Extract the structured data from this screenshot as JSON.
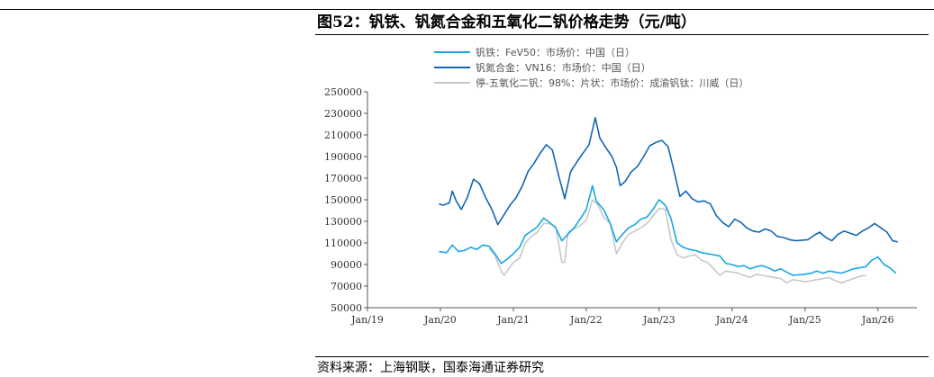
{
  "title": "图52：钒铁、钒氮合金和五氧化二钒价格走势（元/吨）",
  "source": "资料来源：上海钢联，国泰海通证券研究",
  "chart_data": {
    "type": "line",
    "ylim": [
      50000,
      250000
    ],
    "yticks": [
      "250000",
      "230000",
      "210000",
      "190000",
      "170000",
      "150000",
      "130000",
      "110000",
      "90000",
      "70000",
      "50000"
    ],
    "xticks": [
      "Jan/19",
      "Jan/20",
      "Jan/21",
      "Jan/22",
      "Jan/23",
      "Jan/24",
      "Jan/25",
      "Jan/26"
    ],
    "legend_position": "top",
    "series": [
      {
        "name": "钒铁：FeV50：市场价：中国（日）",
        "color": "#1aa7e0",
        "points": [
          [
            "2019-12-25",
            102000
          ],
          [
            "2020-02-01",
            101000
          ],
          [
            "2020-03-01",
            108000
          ],
          [
            "2020-04-01",
            102000
          ],
          [
            "2020-05-01",
            103000
          ],
          [
            "2020-06-01",
            106000
          ],
          [
            "2020-07-01",
            104000
          ],
          [
            "2020-08-01",
            108000
          ],
          [
            "2020-09-01",
            107000
          ],
          [
            "2020-10-01",
            100000
          ],
          [
            "2020-11-01",
            91000
          ],
          [
            "2020-12-01",
            95000
          ],
          [
            "2021-01-01",
            100000
          ],
          [
            "2021-02-01",
            106000
          ],
          [
            "2021-03-01",
            117000
          ],
          [
            "2021-04-01",
            121000
          ],
          [
            "2021-05-01",
            125000
          ],
          [
            "2021-06-01",
            133000
          ],
          [
            "2021-07-01",
            129000
          ],
          [
            "2021-08-01",
            124000
          ],
          [
            "2021-09-01",
            112000
          ],
          [
            "2021-10-01",
            118000
          ],
          [
            "2021-11-01",
            124000
          ],
          [
            "2021-12-01",
            132000
          ],
          [
            "2022-01-01",
            141000
          ],
          [
            "2022-02-01",
            163000
          ],
          [
            "2022-02-20",
            149000
          ],
          [
            "2022-03-10",
            145000
          ],
          [
            "2022-04-01",
            140000
          ],
          [
            "2022-05-01",
            128000
          ],
          [
            "2022-06-01",
            111000
          ],
          [
            "2022-07-01",
            118000
          ],
          [
            "2022-08-01",
            124000
          ],
          [
            "2022-09-01",
            127000
          ],
          [
            "2022-10-01",
            132000
          ],
          [
            "2022-11-01",
            134000
          ],
          [
            "2022-12-01",
            141000
          ],
          [
            "2023-01-01",
            150000
          ],
          [
            "2023-02-01",
            145000
          ],
          [
            "2023-03-01",
            133000
          ],
          [
            "2023-04-01",
            110000
          ],
          [
            "2023-05-01",
            106000
          ],
          [
            "2023-06-01",
            104000
          ],
          [
            "2023-07-01",
            103000
          ],
          [
            "2023-08-01",
            101000
          ],
          [
            "2023-09-01",
            100000
          ],
          [
            "2023-10-01",
            99000
          ],
          [
            "2023-11-01",
            98000
          ],
          [
            "2023-12-01",
            91000
          ],
          [
            "2024-01-01",
            90000
          ],
          [
            "2024-02-01",
            88000
          ],
          [
            "2024-03-01",
            89000
          ],
          [
            "2024-04-01",
            86000
          ],
          [
            "2024-05-01",
            88000
          ],
          [
            "2024-06-01",
            89000
          ],
          [
            "2024-07-01",
            87000
          ],
          [
            "2024-08-01",
            84000
          ],
          [
            "2024-09-01",
            86000
          ],
          [
            "2024-10-01",
            83000
          ],
          [
            "2024-11-01",
            80000
          ],
          [
            "2025-01-01",
            81000
          ],
          [
            "2025-02-01",
            82000
          ],
          [
            "2025-03-01",
            84000
          ],
          [
            "2025-04-01",
            82000
          ],
          [
            "2025-05-01",
            84000
          ],
          [
            "2025-06-01",
            83000
          ],
          [
            "2025-07-01",
            82000
          ],
          [
            "2025-08-01",
            84000
          ],
          [
            "2025-09-01",
            86000
          ],
          [
            "2025-10-01",
            87000
          ],
          [
            "2025-11-01",
            88000
          ],
          [
            "2025-12-01",
            94000
          ],
          [
            "2026-01-01",
            97000
          ],
          [
            "2026-02-01",
            90000
          ],
          [
            "2026-03-01",
            87000
          ],
          [
            "2026-04-01",
            82000
          ]
        ]
      },
      {
        "name": "钒氮合金：VN16：市场价：中国（日）",
        "color": "#1267b2",
        "points": [
          [
            "2019-12-25",
            146000
          ],
          [
            "2020-01-15",
            145000
          ],
          [
            "2020-02-15",
            147000
          ],
          [
            "2020-03-01",
            158000
          ],
          [
            "2020-03-20",
            149000
          ],
          [
            "2020-04-15",
            141000
          ],
          [
            "2020-05-15",
            152000
          ],
          [
            "2020-06-15",
            169000
          ],
          [
            "2020-07-15",
            165000
          ],
          [
            "2020-08-15",
            152000
          ],
          [
            "2020-09-15",
            141000
          ],
          [
            "2020-10-15",
            127000
          ],
          [
            "2020-11-15",
            136000
          ],
          [
            "2020-12-15",
            145000
          ],
          [
            "2021-01-15",
            152000
          ],
          [
            "2021-02-15",
            163000
          ],
          [
            "2021-03-15",
            176000
          ],
          [
            "2021-04-15",
            184000
          ],
          [
            "2021-05-15",
            193000
          ],
          [
            "2021-06-15",
            201000
          ],
          [
            "2021-07-15",
            196000
          ],
          [
            "2021-08-15",
            173000
          ],
          [
            "2021-09-15",
            151000
          ],
          [
            "2021-10-15",
            176000
          ],
          [
            "2021-11-15",
            185000
          ],
          [
            "2021-12-15",
            193000
          ],
          [
            "2022-01-15",
            201000
          ],
          [
            "2022-02-15",
            226000
          ],
          [
            "2022-03-10",
            207000
          ],
          [
            "2022-04-10",
            198000
          ],
          [
            "2022-05-10",
            190000
          ],
          [
            "2022-06-01",
            180000
          ],
          [
            "2022-06-20",
            163000
          ],
          [
            "2022-07-15",
            167000
          ],
          [
            "2022-08-15",
            176000
          ],
          [
            "2022-09-15",
            181000
          ],
          [
            "2022-10-15",
            190000
          ],
          [
            "2022-11-15",
            200000
          ],
          [
            "2022-12-15",
            203000
          ],
          [
            "2023-01-15",
            205000
          ],
          [
            "2023-02-15",
            199000
          ],
          [
            "2023-03-15",
            178000
          ],
          [
            "2023-04-15",
            153000
          ],
          [
            "2023-05-15",
            158000
          ],
          [
            "2023-06-15",
            151000
          ],
          [
            "2023-07-15",
            148000
          ],
          [
            "2023-08-15",
            149000
          ],
          [
            "2023-09-15",
            146000
          ],
          [
            "2023-10-15",
            135000
          ],
          [
            "2023-11-15",
            129000
          ],
          [
            "2023-12-15",
            125000
          ],
          [
            "2024-01-15",
            132000
          ],
          [
            "2024-02-15",
            129000
          ],
          [
            "2024-03-15",
            124000
          ],
          [
            "2024-04-15",
            121000
          ],
          [
            "2024-05-15",
            120000
          ],
          [
            "2024-06-15",
            123000
          ],
          [
            "2024-07-15",
            121000
          ],
          [
            "2024-08-15",
            116000
          ],
          [
            "2024-09-15",
            115000
          ],
          [
            "2024-10-15",
            113000
          ],
          [
            "2024-11-15",
            112000
          ],
          [
            "2025-01-15",
            113000
          ],
          [
            "2025-02-15",
            117000
          ],
          [
            "2025-03-15",
            120000
          ],
          [
            "2025-04-15",
            115000
          ],
          [
            "2025-05-15",
            112000
          ],
          [
            "2025-06-15",
            118000
          ],
          [
            "2025-07-15",
            121000
          ],
          [
            "2025-08-15",
            119000
          ],
          [
            "2025-09-15",
            117000
          ],
          [
            "2025-10-15",
            121000
          ],
          [
            "2025-11-15",
            124000
          ],
          [
            "2025-12-15",
            128000
          ],
          [
            "2026-01-15",
            124000
          ],
          [
            "2026-02-15",
            120000
          ],
          [
            "2026-03-15",
            112000
          ],
          [
            "2026-04-10",
            111000
          ]
        ]
      },
      {
        "name": "停-五氧化二钒：98%：片状：市场价：成渝钒钛：川威（日）",
        "color": "#c8c8c8",
        "points": [
          [
            "2020-09-01",
            105000
          ],
          [
            "2020-10-01",
            98000
          ],
          [
            "2020-11-01",
            84000
          ],
          [
            "2020-11-15",
            80000
          ],
          [
            "2020-12-01",
            84000
          ],
          [
            "2021-01-01",
            92000
          ],
          [
            "2021-02-01",
            96000
          ],
          [
            "2021-03-01",
            110000
          ],
          [
            "2021-04-01",
            116000
          ],
          [
            "2021-05-01",
            120000
          ],
          [
            "2021-06-01",
            128000
          ],
          [
            "2021-07-01",
            128000
          ],
          [
            "2021-08-01",
            125000
          ],
          [
            "2021-09-01",
            92000
          ],
          [
            "2021-09-15",
            92000
          ],
          [
            "2021-10-01",
            120000
          ],
          [
            "2021-11-01",
            123000
          ],
          [
            "2021-12-01",
            126000
          ],
          [
            "2022-01-01",
            131000
          ],
          [
            "2022-02-01",
            150000
          ],
          [
            "2022-03-01",
            145000
          ],
          [
            "2022-04-01",
            133000
          ],
          [
            "2022-05-01",
            128000
          ],
          [
            "2022-06-01",
            100000
          ],
          [
            "2022-07-01",
            110000
          ],
          [
            "2022-08-01",
            118000
          ],
          [
            "2022-09-01",
            121000
          ],
          [
            "2022-10-01",
            124000
          ],
          [
            "2022-11-01",
            128000
          ],
          [
            "2022-12-01",
            135000
          ],
          [
            "2023-01-01",
            142000
          ],
          [
            "2023-02-01",
            141000
          ],
          [
            "2023-03-01",
            113000
          ],
          [
            "2023-04-01",
            99000
          ],
          [
            "2023-05-01",
            96000
          ],
          [
            "2023-06-01",
            98000
          ],
          [
            "2023-07-01",
            99000
          ],
          [
            "2023-08-01",
            94000
          ],
          [
            "2023-09-01",
            92000
          ],
          [
            "2023-10-01",
            86000
          ],
          [
            "2023-11-01",
            80000
          ],
          [
            "2023-12-01",
            84000
          ],
          [
            "2024-01-01",
            83000
          ],
          [
            "2024-02-01",
            82000
          ],
          [
            "2024-03-01",
            80000
          ],
          [
            "2024-04-01",
            78000
          ],
          [
            "2024-05-01",
            81000
          ],
          [
            "2024-06-01",
            80000
          ],
          [
            "2024-07-01",
            79000
          ],
          [
            "2024-08-01",
            78000
          ],
          [
            "2024-09-01",
            77000
          ],
          [
            "2024-10-01",
            73000
          ],
          [
            "2024-11-01",
            76000
          ],
          [
            "2024-12-01",
            75000
          ],
          [
            "2025-01-01",
            74000
          ],
          [
            "2025-02-01",
            75000
          ],
          [
            "2025-03-01",
            76000
          ],
          [
            "2025-04-01",
            77000
          ],
          [
            "2025-05-01",
            78000
          ],
          [
            "2025-06-01",
            75000
          ],
          [
            "2025-07-01",
            73000
          ],
          [
            "2025-08-01",
            75000
          ],
          [
            "2025-09-01",
            77000
          ],
          [
            "2025-10-01",
            79000
          ],
          [
            "2025-11-01",
            80000
          ]
        ]
      }
    ]
  }
}
